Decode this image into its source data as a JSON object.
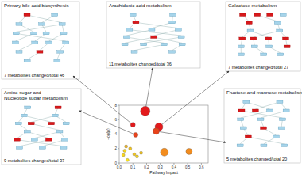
{
  "chart_data": {
    "type": "scatter",
    "x_label": "Pathway Impact",
    "y_label": "-log(p)",
    "x": [
      0.19,
      0.29,
      0.1,
      0.12,
      0.27,
      0.33,
      0.51,
      0.05,
      0.08,
      0.11,
      0.03,
      0.13,
      0.06,
      0.16,
      0.04
    ],
    "values": [
      7.2,
      5.0,
      5.3,
      3.9,
      4.4,
      1.5,
      1.6,
      2.3,
      2.0,
      1.2,
      1.1,
      0.9,
      0.4,
      1.4,
      1.7
    ],
    "sizes": [
      6,
      5,
      3,
      3,
      4,
      5,
      4,
      2,
      2,
      2,
      2,
      2,
      2,
      2,
      2
    ],
    "colors": [
      "#e31a1c",
      "#e31a1c",
      "#e31a1c",
      "#e8421a",
      "#e8421a",
      "#f28c1e",
      "#f28c1e",
      "#f2b61e",
      "#f5c518",
      "#f5c518",
      "#f7d51c",
      "#f7d51c",
      "#f9e21e",
      "#f5c518",
      "#f7d51c"
    ],
    "xlim": [
      0,
      0.65
    ],
    "ylim": [
      0,
      8
    ],
    "xticks": [
      {
        "value": 0,
        "label": "0.0"
      },
      0.1,
      0.2,
      0.3,
      0.4,
      0.5,
      0.6
    ],
    "yticks": [
      0,
      2,
      4,
      6,
      8
    ],
    "grid": false
  },
  "panels": [
    {
      "title_lines": [
        "Primary bile acid biosynthesis"
      ],
      "caption": "7 metabolites changed/total 46"
    },
    {
      "title_lines": [
        "Arachidonic acid metabolism"
      ],
      "caption": "11 metabolites changed/total 36"
    },
    {
      "title_lines": [
        "Galactose metabolism"
      ],
      "caption": "7 metabolites changed/total 27"
    },
    {
      "title_lines": [
        "Amino sugar and",
        "Nucleotide sugar metabolism"
      ],
      "caption": "9 metabolites changed/total 37"
    },
    {
      "title_lines": [
        "Fructose and mannose metabolism"
      ],
      "caption": "5 metabolites changed/total 20"
    }
  ]
}
